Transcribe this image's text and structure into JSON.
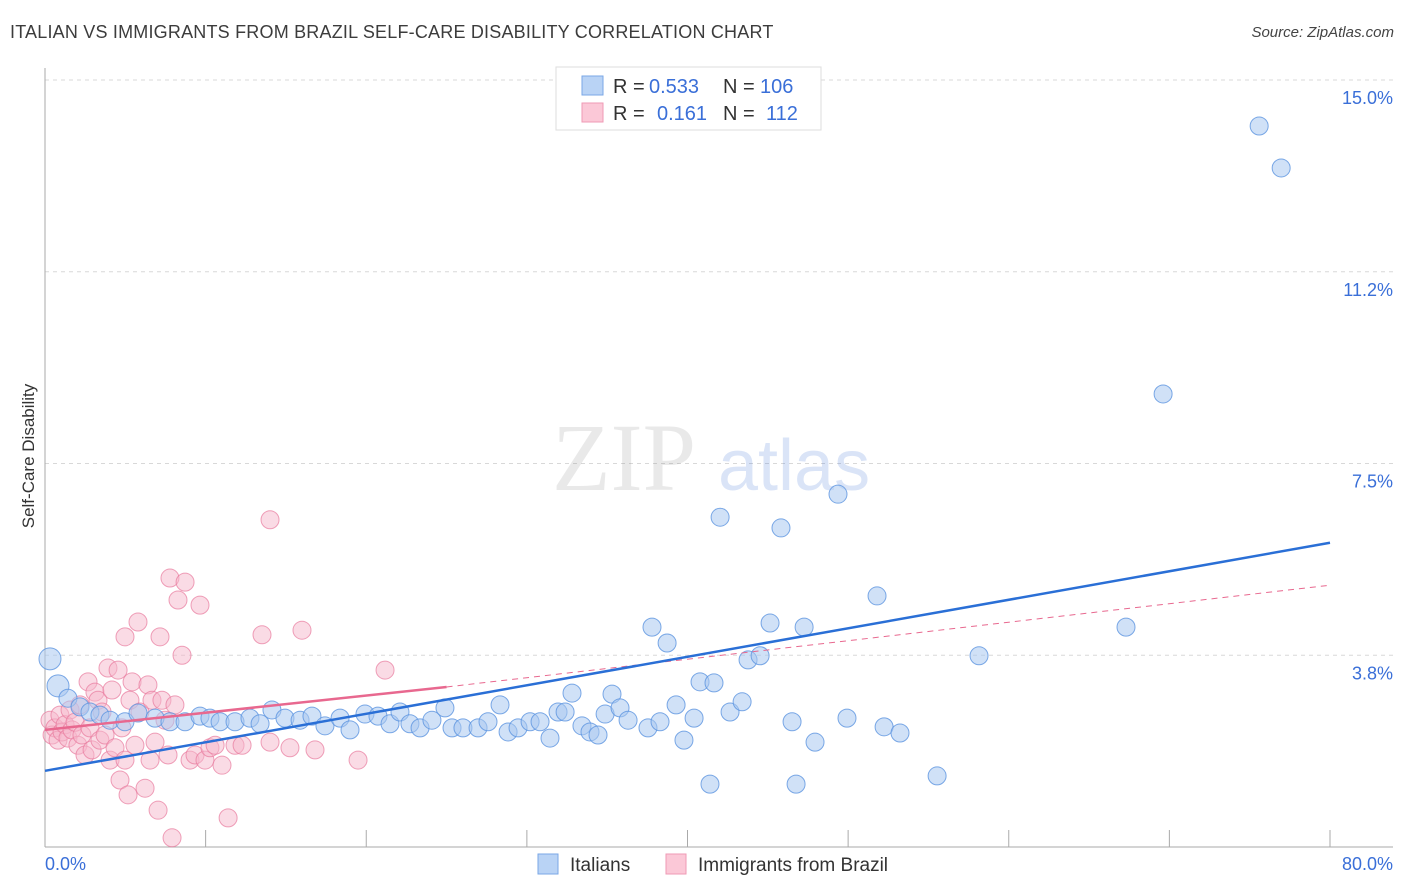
{
  "title": "ITALIAN VS IMMIGRANTS FROM BRAZIL SELF-CARE DISABILITY CORRELATION CHART",
  "source": "Source: ZipAtlas.com",
  "watermark": {
    "zip": "ZIP",
    "atlas": "atlas"
  },
  "colors": {
    "blue": "#5b93e0",
    "blue_fill": "#a9c9f0",
    "blue_line": "#2a6fd6",
    "pink": "#e8799c",
    "pink_fill": "#f5b8cb",
    "pink_line": "#e8688f",
    "accent": "#3a6fd8"
  },
  "legend": {
    "rows": [
      {
        "r_label": "R =",
        "r_value": "0.533",
        "n_label": "N =",
        "n_value": "106"
      },
      {
        "r_label": "R =",
        "r_value": "0.161",
        "n_label": "N =",
        "n_value": "112"
      }
    ]
  },
  "chart_data": {
    "type": "scatter",
    "title": "ITALIAN VS IMMIGRANTS FROM BRAZIL SELF-CARE DISABILITY CORRELATION CHART",
    "xlabel": "",
    "ylabel": "Self-Care Disability",
    "xlim": [
      0,
      80
    ],
    "ylim": [
      0,
      15
    ],
    "x_tick_labels": [
      "0.0%",
      "80.0%"
    ],
    "y_ticks": [
      15.0,
      11.25,
      7.5,
      3.75
    ],
    "y_tick_labels": [
      "15.0%",
      "11.2%",
      "7.5%",
      "3.8%"
    ],
    "grid": true,
    "legend_position": "bottom-center",
    "series": [
      {
        "name": "Italians",
        "r": 0.533,
        "n": 106,
        "trend": [
          [
            0,
            1.49
          ],
          [
            80,
            5.95
          ]
        ],
        "points": [
          [
            0.31,
            3.68
          ],
          [
            0.81,
            3.15
          ],
          [
            1.43,
            2.91
          ],
          [
            2.18,
            2.74
          ],
          [
            2.8,
            2.64
          ],
          [
            3.42,
            2.58
          ],
          [
            4.05,
            2.48
          ],
          [
            4.98,
            2.45
          ],
          [
            5.79,
            2.62
          ],
          [
            6.85,
            2.52
          ],
          [
            7.78,
            2.45
          ],
          [
            8.72,
            2.45
          ],
          [
            9.65,
            2.56
          ],
          [
            10.27,
            2.52
          ],
          [
            10.9,
            2.45
          ],
          [
            11.83,
            2.45
          ],
          [
            12.76,
            2.52
          ],
          [
            13.39,
            2.41
          ],
          [
            14.13,
            2.68
          ],
          [
            14.94,
            2.52
          ],
          [
            15.88,
            2.48
          ],
          [
            16.62,
            2.56
          ],
          [
            17.43,
            2.37
          ],
          [
            18.37,
            2.52
          ],
          [
            18.99,
            2.29
          ],
          [
            19.92,
            2.6
          ],
          [
            20.73,
            2.56
          ],
          [
            21.48,
            2.41
          ],
          [
            22.1,
            2.64
          ],
          [
            22.72,
            2.41
          ],
          [
            23.35,
            2.33
          ],
          [
            24.09,
            2.48
          ],
          [
            24.9,
            2.72
          ],
          [
            25.34,
            2.33
          ],
          [
            26.02,
            2.33
          ],
          [
            26.96,
            2.33
          ],
          [
            27.58,
            2.45
          ],
          [
            28.33,
            2.78
          ],
          [
            28.83,
            2.25
          ],
          [
            29.45,
            2.33
          ],
          [
            30.2,
            2.45
          ],
          [
            30.82,
            2.45
          ],
          [
            31.44,
            2.13
          ],
          [
            31.94,
            2.64
          ],
          [
            32.38,
            2.64
          ],
          [
            32.81,
            3.01
          ],
          [
            33.43,
            2.37
          ],
          [
            33.93,
            2.25
          ],
          [
            34.43,
            2.19
          ],
          [
            34.87,
            2.6
          ],
          [
            35.3,
            2.99
          ],
          [
            35.8,
            2.72
          ],
          [
            36.3,
            2.48
          ],
          [
            37.54,
            2.33
          ],
          [
            37.79,
            4.3
          ],
          [
            38.29,
            2.45
          ],
          [
            38.73,
            3.99
          ],
          [
            39.29,
            2.78
          ],
          [
            39.78,
            2.09
          ],
          [
            40.41,
            2.52
          ],
          [
            40.78,
            3.23
          ],
          [
            41.4,
            1.23
          ],
          [
            41.65,
            3.21
          ],
          [
            42.03,
            6.45
          ],
          [
            42.65,
            2.64
          ],
          [
            43.4,
            2.84
          ],
          [
            43.77,
            3.66
          ],
          [
            44.52,
            3.74
          ],
          [
            45.14,
            4.38
          ],
          [
            45.82,
            6.24
          ],
          [
            46.51,
            2.45
          ],
          [
            46.76,
            1.23
          ],
          [
            47.26,
            4.3
          ],
          [
            47.94,
            2.05
          ],
          [
            49.37,
            6.9
          ],
          [
            49.93,
            2.52
          ],
          [
            51.8,
            4.91
          ],
          [
            52.24,
            2.35
          ],
          [
            53.23,
            2.23
          ],
          [
            55.54,
            1.39
          ],
          [
            58.15,
            3.74
          ],
          [
            67.3,
            4.3
          ],
          [
            69.61,
            8.86
          ],
          [
            75.59,
            14.1
          ],
          [
            76.96,
            13.28
          ]
        ]
      },
      {
        "name": "Immigrants from Brazil",
        "r": 0.161,
        "n": 112,
        "trend": [
          [
            0,
            2.29
          ],
          [
            25,
            3.13
          ]
        ],
        "trend_extension": [
          [
            25,
            3.13
          ],
          [
            80,
            5.12
          ]
        ],
        "points": [
          [
            0.31,
            2.48
          ],
          [
            0.44,
            2.19
          ],
          [
            0.62,
            2.33
          ],
          [
            0.81,
            2.09
          ],
          [
            0.93,
            2.58
          ],
          [
            1.06,
            2.25
          ],
          [
            1.25,
            2.39
          ],
          [
            1.43,
            2.13
          ],
          [
            1.56,
            2.68
          ],
          [
            1.68,
            2.29
          ],
          [
            1.87,
            2.44
          ],
          [
            2.05,
            1.99
          ],
          [
            2.18,
            2.78
          ],
          [
            2.3,
            2.19
          ],
          [
            2.49,
            1.8
          ],
          [
            2.68,
            3.23
          ],
          [
            2.8,
            2.33
          ],
          [
            2.93,
            1.9
          ],
          [
            3.11,
            3.03
          ],
          [
            3.3,
            2.87
          ],
          [
            3.42,
            2.09
          ],
          [
            3.55,
            2.64
          ],
          [
            3.74,
            2.19
          ],
          [
            3.92,
            3.5
          ],
          [
            4.05,
            1.7
          ],
          [
            4.17,
            3.07
          ],
          [
            4.36,
            1.94
          ],
          [
            4.55,
            3.46
          ],
          [
            4.67,
            1.31
          ],
          [
            4.79,
            2.33
          ],
          [
            4.98,
            1.7
          ],
          [
            4.98,
            4.11
          ],
          [
            5.17,
            1.02
          ],
          [
            5.29,
            2.87
          ],
          [
            5.42,
            3.23
          ],
          [
            5.6,
            1.99
          ],
          [
            5.79,
            4.4
          ],
          [
            5.91,
            2.64
          ],
          [
            6.23,
            1.15
          ],
          [
            6.41,
            3.17
          ],
          [
            6.54,
            1.7
          ],
          [
            6.66,
            2.87
          ],
          [
            6.85,
            2.05
          ],
          [
            7.04,
            0.72
          ],
          [
            7.16,
            4.11
          ],
          [
            7.28,
            2.87
          ],
          [
            7.47,
            2.48
          ],
          [
            7.66,
            1.8
          ],
          [
            7.78,
            5.26
          ],
          [
            7.91,
            0.18
          ],
          [
            8.09,
            2.78
          ],
          [
            8.28,
            4.83
          ],
          [
            8.53,
            3.75
          ],
          [
            8.72,
            5.18
          ],
          [
            9.03,
            1.7
          ],
          [
            9.34,
            1.8
          ],
          [
            9.65,
            4.73
          ],
          [
            9.96,
            1.7
          ],
          [
            10.27,
            1.94
          ],
          [
            10.59,
            1.99
          ],
          [
            11.02,
            1.6
          ],
          [
            11.4,
            0.57
          ],
          [
            11.83,
            1.99
          ],
          [
            12.27,
            1.99
          ],
          [
            13.51,
            4.15
          ],
          [
            14.01,
            6.4
          ],
          [
            14.01,
            2.05
          ],
          [
            15.25,
            1.94
          ],
          [
            16.0,
            4.24
          ],
          [
            16.81,
            1.9
          ],
          [
            19.49,
            1.7
          ],
          [
            21.17,
            3.46
          ]
        ]
      }
    ]
  }
}
